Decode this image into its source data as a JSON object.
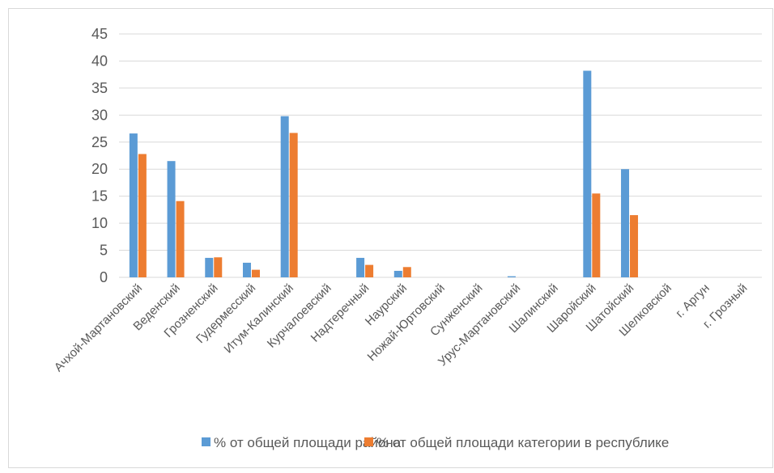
{
  "chart_data": {
    "type": "bar",
    "title": "",
    "xlabel": "",
    "ylabel": "",
    "ylim": [
      0,
      45
    ],
    "yticks": [
      0,
      5,
      10,
      15,
      20,
      25,
      30,
      35,
      40,
      45
    ],
    "grid": true,
    "legend_position": "bottom",
    "categories": [
      "Ачхой-Мартановский",
      "Веденский",
      "Грозненский",
      "Гудермесский",
      "Итум-Калинский",
      "Курчалоевский",
      "Надтеречный",
      "Наурский",
      "Ножай-Юртовский",
      "Сунженский",
      "Урус-Мартановский",
      "Шалинский",
      "Шаройский",
      "Шатойский",
      "Шелковской",
      "г. Аргун",
      "г. Грозный"
    ],
    "series": [
      {
        "name": "% от общей площади района",
        "color": "#5B9BD5",
        "values": [
          26.6,
          21.5,
          3.6,
          2.7,
          29.8,
          0,
          3.6,
          1.2,
          0,
          0,
          0.2,
          0,
          38.2,
          20.0,
          0,
          0,
          0
        ]
      },
      {
        "name": "% от общей площади категории в республике",
        "color": "#ED7D31",
        "values": [
          22.8,
          14.1,
          3.7,
          1.4,
          26.7,
          0,
          2.3,
          1.9,
          0,
          0,
          0,
          0,
          15.5,
          11.5,
          0,
          0,
          0
        ]
      }
    ]
  }
}
